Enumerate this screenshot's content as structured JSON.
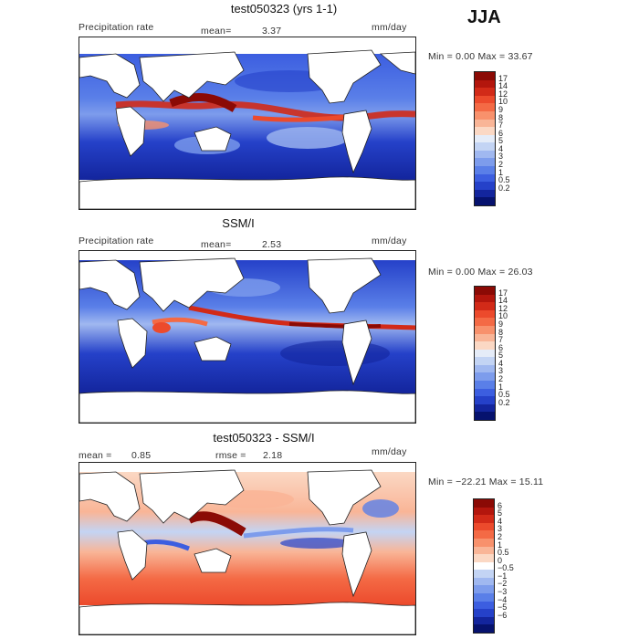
{
  "season_label": "JJA",
  "panels": [
    {
      "title": "test050323 (yrs 1-1)",
      "left_label": "Precipitation rate",
      "mean_label": "mean=",
      "mean_value": "3.37",
      "units": "mm/day",
      "minmax": "Min =    0.00 Max =   33.67",
      "colorbar_labels": [
        "17",
        "14",
        "12",
        "10",
        "9",
        "8",
        "7",
        "6",
        "5",
        "4",
        "3",
        "2",
        "1",
        "0.5",
        "0.2"
      ],
      "colorbar_colors": [
        "#8b0a05",
        "#b3160d",
        "#d22a18",
        "#ec4a2c",
        "#f46a45",
        "#f8916c",
        "#f9b597",
        "#fbd8c4",
        "#e5ecf8",
        "#c3d4f4",
        "#a0b8f0",
        "#7d9cec",
        "#5a7fe8",
        "#3c5ee0",
        "#2541c9",
        "#13259d",
        "#06126e"
      ]
    },
    {
      "title": "SSM/I",
      "left_label": "Precipitation rate",
      "mean_label": "mean=",
      "mean_value": "2.53",
      "units": "mm/day",
      "minmax": "Min =    0.00 Max =   26.03",
      "colorbar_labels": [
        "17",
        "14",
        "12",
        "10",
        "9",
        "8",
        "7",
        "6",
        "5",
        "4",
        "3",
        "2",
        "1",
        "0.5",
        "0.2"
      ],
      "colorbar_colors": [
        "#8b0a05",
        "#b3160d",
        "#d22a18",
        "#ec4a2c",
        "#f46a45",
        "#f8916c",
        "#f9b597",
        "#fbd8c4",
        "#e5ecf8",
        "#c3d4f4",
        "#a0b8f0",
        "#7d9cec",
        "#5a7fe8",
        "#3c5ee0",
        "#2541c9",
        "#13259d",
        "#06126e"
      ]
    },
    {
      "title": "test050323 - SSM/I",
      "mean_label": "mean =",
      "mean_value": "0.85",
      "rmse_label": "rmse =",
      "rmse_value": "2.18",
      "units": "mm/day",
      "minmax": "Min = −22.21 Max =   15.11",
      "colorbar_labels": [
        "6",
        "5",
        "4",
        "3",
        "2",
        "1",
        "0.5",
        "0",
        "−0.5",
        "−1",
        "−2",
        "−3",
        "−4",
        "−5",
        "−6"
      ],
      "colorbar_colors": [
        "#8b0a05",
        "#b3160d",
        "#d22a18",
        "#ec4a2c",
        "#f46a45",
        "#f8916c",
        "#f9b597",
        "#fbd8c4",
        "#ffffff",
        "#c3d4f4",
        "#a0b8f0",
        "#7d9cec",
        "#5a7fe8",
        "#3c5ee0",
        "#2541c9",
        "#13259d",
        "#06126e"
      ]
    }
  ]
}
